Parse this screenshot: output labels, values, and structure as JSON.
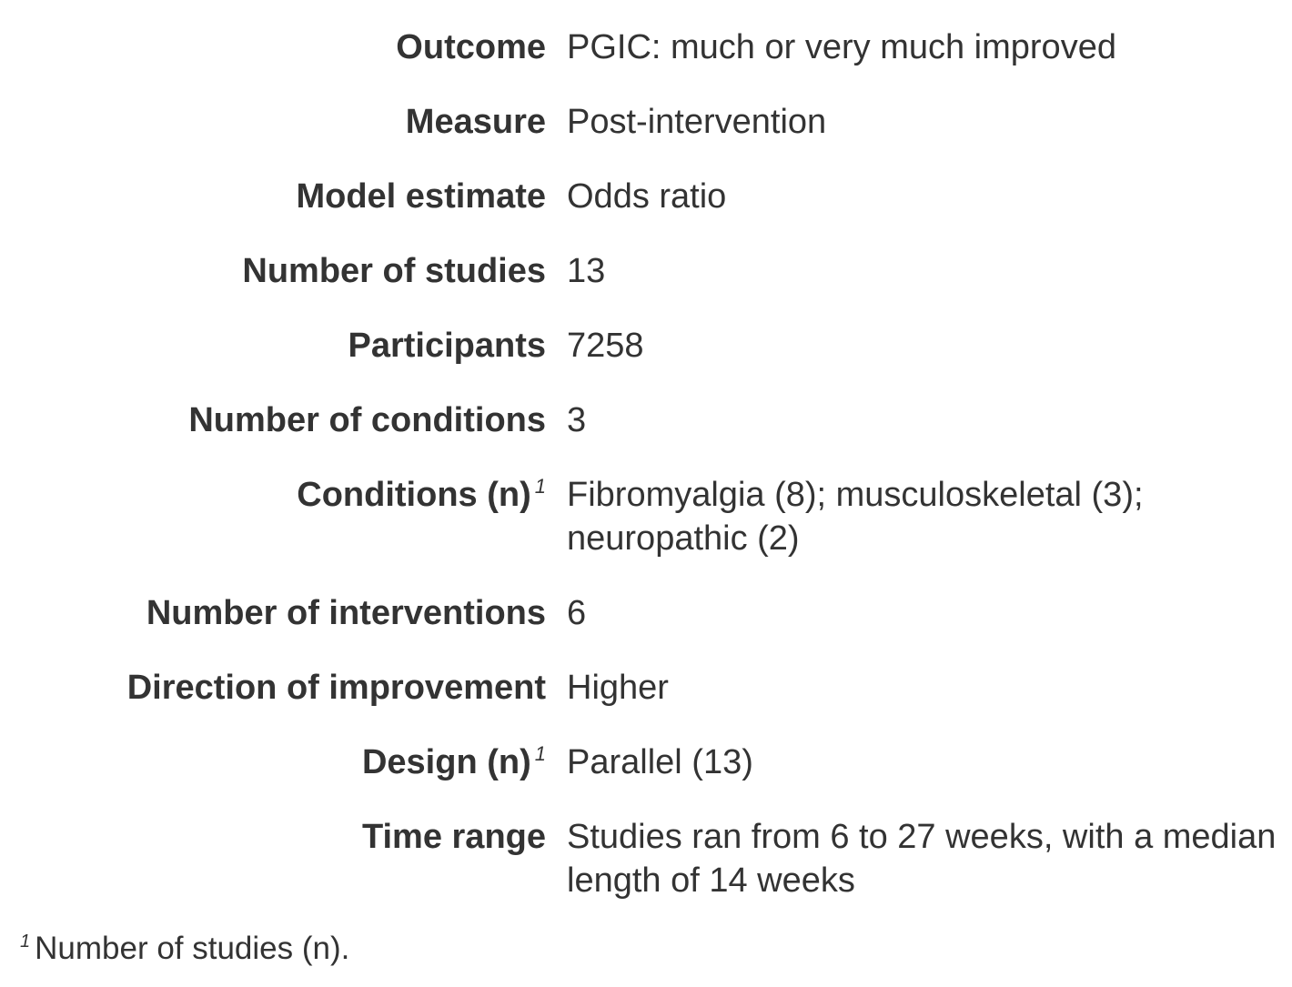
{
  "rows": [
    {
      "label": "Outcome",
      "value": "PGIC: much or very much improved",
      "footnote_mark": ""
    },
    {
      "label": "Measure",
      "value": "Post-intervention",
      "footnote_mark": ""
    },
    {
      "label": "Model estimate",
      "value": "Odds ratio",
      "footnote_mark": ""
    },
    {
      "label": "Number of studies",
      "value": "13",
      "footnote_mark": ""
    },
    {
      "label": "Participants",
      "value": "7258",
      "footnote_mark": ""
    },
    {
      "label": "Number of conditions",
      "value": "3",
      "footnote_mark": ""
    },
    {
      "label": "Conditions (n)",
      "value": "Fibromyalgia (8); musculoskeletal (3); neuropathic (2)",
      "footnote_mark": "1"
    },
    {
      "label": "Number of interventions",
      "value": "6",
      "footnote_mark": ""
    },
    {
      "label": "Direction of improvement",
      "value": "Higher",
      "footnote_mark": ""
    },
    {
      "label": "Design (n)",
      "value": "Parallel (13)",
      "footnote_mark": "1"
    },
    {
      "label": "Time range",
      "value": "Studies ran from 6 to 27 weeks, with a median length of 14 weeks",
      "footnote_mark": ""
    }
  ],
  "footnote": {
    "mark": "1",
    "text": "Number of studies (n)."
  }
}
